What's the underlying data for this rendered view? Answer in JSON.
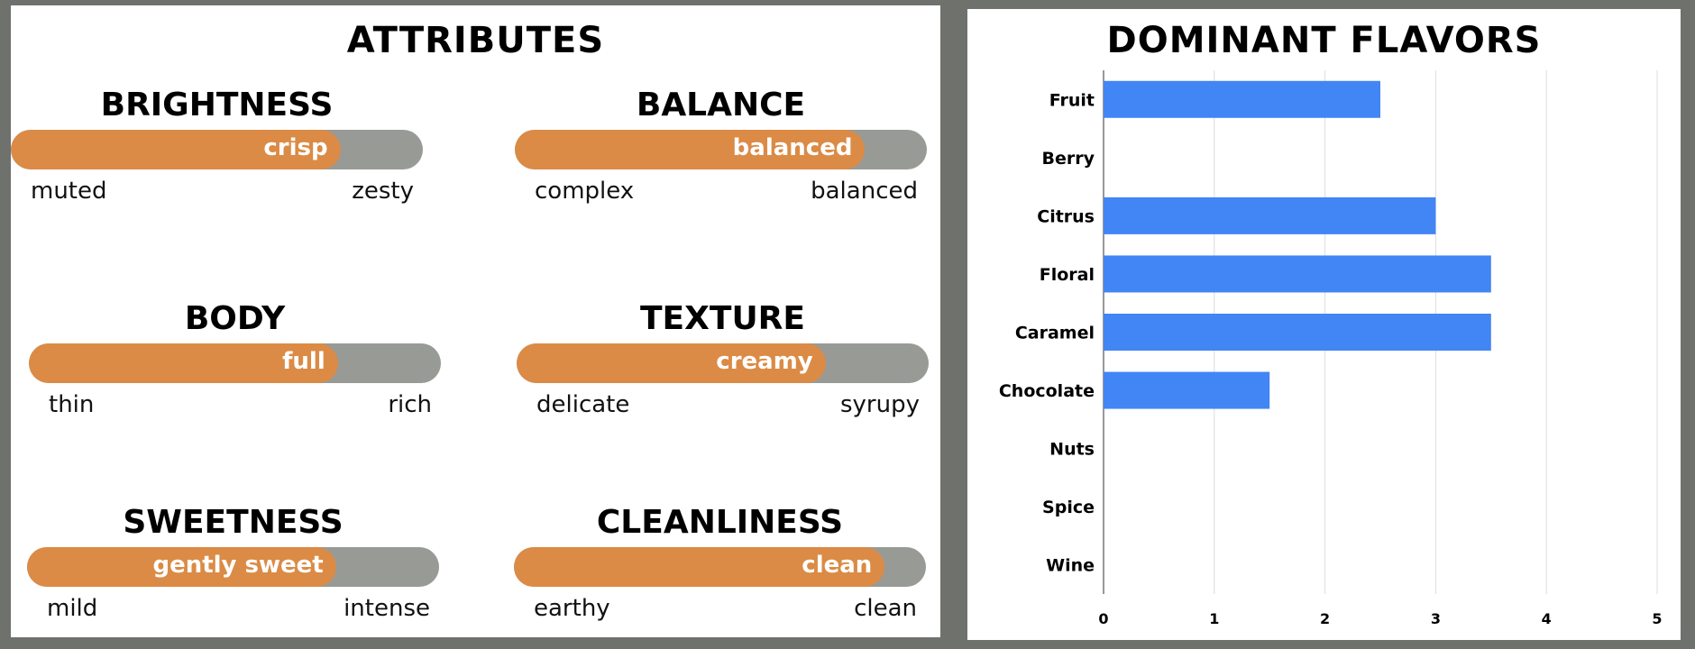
{
  "attributes": {
    "title": "ATTRIBUTES",
    "colors": {
      "fill": "#db8b45",
      "track": "#989a96"
    },
    "items": [
      {
        "name": "BRIGHTNESS",
        "value_label": "crisp",
        "low": "muted",
        "high": "zesty",
        "level": 0.8
      },
      {
        "name": "BALANCE",
        "value_label": "balanced",
        "low": "complex",
        "high": "balanced",
        "level": 0.85
      },
      {
        "name": "BODY",
        "value_label": "full",
        "low": "thin",
        "high": "rich",
        "level": 0.75
      },
      {
        "name": "TEXTURE",
        "value_label": "creamy",
        "low": "delicate",
        "high": "syrupy",
        "level": 0.75
      },
      {
        "name": "SWEETNESS",
        "value_label": "gently sweet",
        "low": "mild",
        "high": "intense",
        "level": 0.75
      },
      {
        "name": "CLEANLINESS",
        "value_label": "clean",
        "low": "earthy",
        "high": "clean",
        "level": 0.9
      }
    ]
  },
  "chart_data": {
    "type": "bar",
    "orientation": "horizontal",
    "title": "DOMINANT FLAVORS",
    "categories": [
      "Fruit",
      "Berry",
      "Citrus",
      "Floral",
      "Caramel",
      "Chocolate",
      "Nuts",
      "Spice",
      "Wine"
    ],
    "values": [
      2.5,
      0,
      3,
      3.5,
      3.5,
      1.5,
      0,
      0,
      0
    ],
    "xlim": [
      0,
      5
    ],
    "xticks": [
      "0",
      "1",
      "2",
      "3",
      "4",
      "5"
    ],
    "grid": true,
    "color": "#4285f4"
  }
}
